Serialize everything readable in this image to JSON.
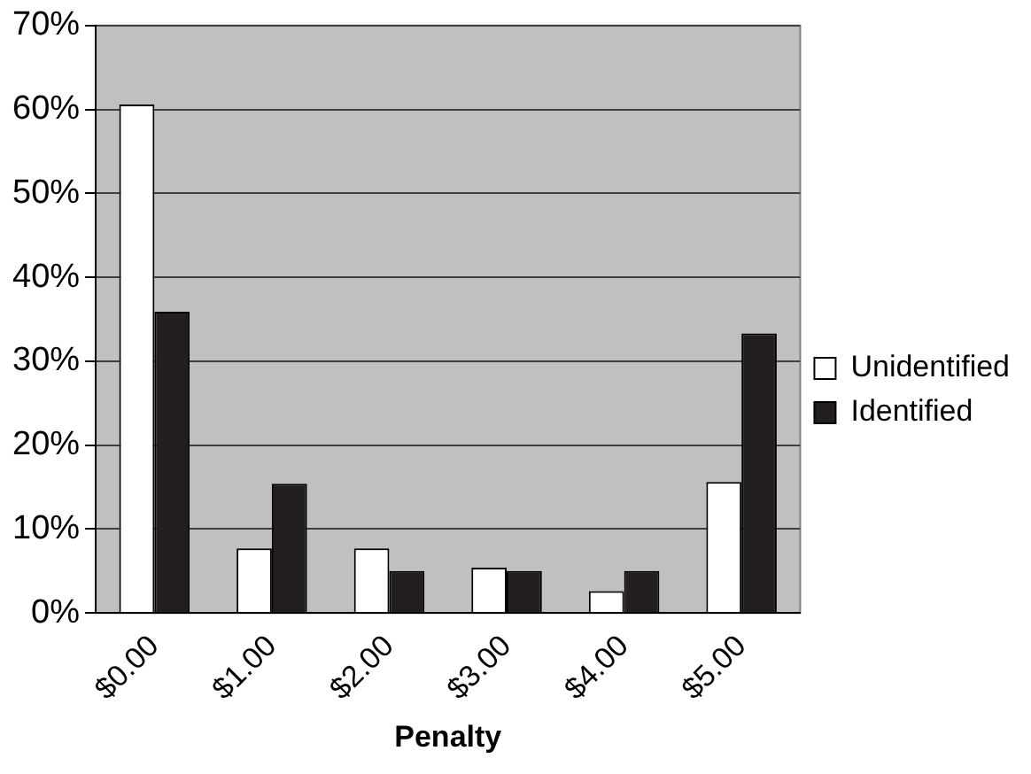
{
  "chart_data": {
    "type": "bar",
    "xlabel": "Penalty",
    "categories": [
      "$0.00",
      "$1.00",
      "$2.00",
      "$3.00",
      "$4.00",
      "$5.00"
    ],
    "series": [
      {
        "name": "Unidentified",
        "color": "#ffffff",
        "values": [
          60.6,
          7.7,
          7.7,
          5.4,
          2.6,
          15.6
        ]
      },
      {
        "name": "Identified",
        "color": "#231f20",
        "values": [
          35.9,
          15.4,
          5.0,
          5.0,
          5.0,
          33.3
        ]
      }
    ],
    "ylim": [
      0,
      70
    ],
    "yticks": [
      {
        "value": 0,
        "label": "0%"
      },
      {
        "value": 10,
        "label": "10%"
      },
      {
        "value": 20,
        "label": "20%"
      },
      {
        "value": 30,
        "label": "30%"
      },
      {
        "value": 40,
        "label": "40%"
      },
      {
        "value": 50,
        "label": "50%"
      },
      {
        "value": 60,
        "label": "60%"
      },
      {
        "value": 70,
        "label": "70%"
      }
    ],
    "grid": "y",
    "legend": "right"
  }
}
